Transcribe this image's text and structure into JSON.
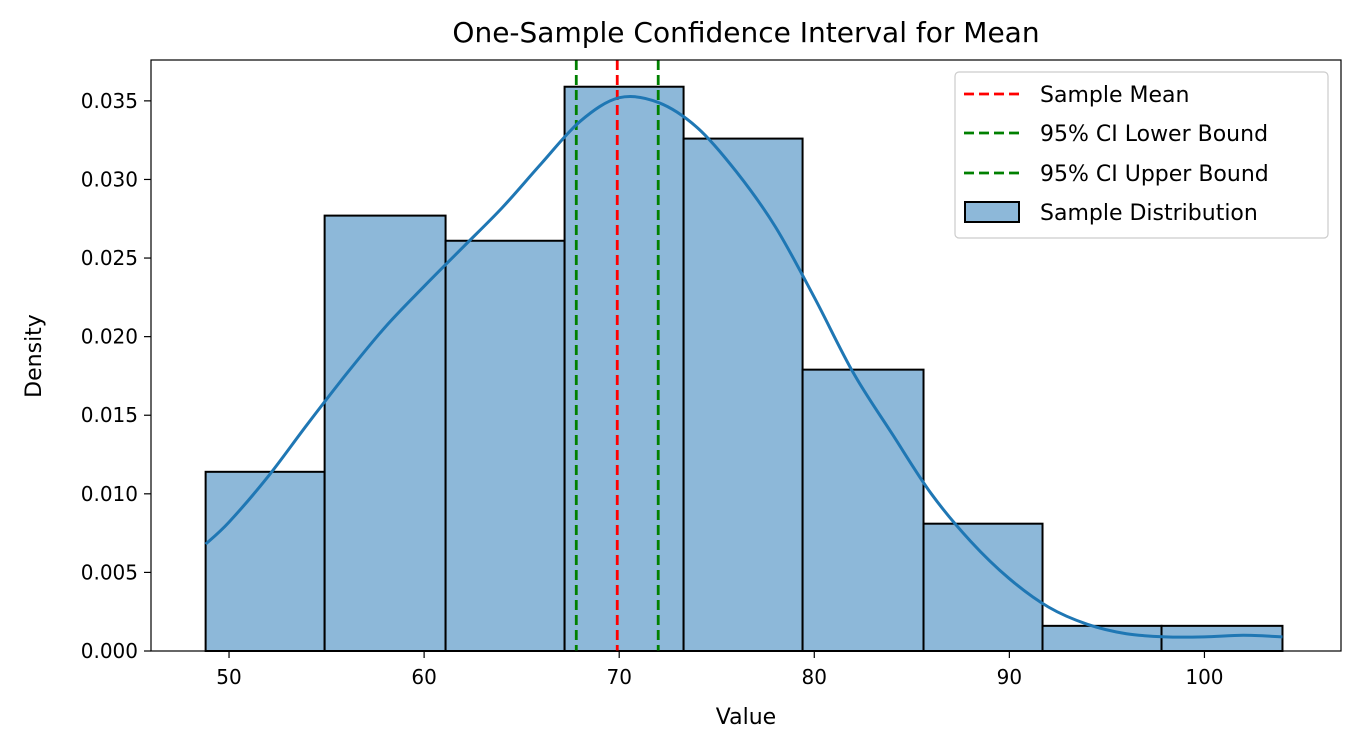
{
  "chart_data": {
    "type": "bar",
    "title": "One-Sample Confidence Interval for Mean",
    "xlabel": "Value",
    "ylabel": "Density",
    "xlim": [
      46,
      107
    ],
    "ylim": [
      0,
      0.0376
    ],
    "xticks": [
      50,
      60,
      70,
      80,
      90,
      100
    ],
    "yticks": [
      0.0,
      0.005,
      0.01,
      0.015,
      0.02,
      0.025,
      0.03,
      0.035
    ],
    "ytick_labels": [
      "0.000",
      "0.005",
      "0.010",
      "0.015",
      "0.020",
      "0.025",
      "0.030",
      "0.035"
    ],
    "histogram": {
      "name": "Sample Distribution",
      "color": "#8db8d9",
      "edge_color": "#000000",
      "bins": [
        {
          "x0": 48.8,
          "x1": 54.9,
          "density": 0.0114
        },
        {
          "x0": 54.9,
          "x1": 61.1,
          "density": 0.0277
        },
        {
          "x0": 61.1,
          "x1": 67.2,
          "density": 0.0261
        },
        {
          "x0": 67.2,
          "x1": 73.3,
          "density": 0.0359
        },
        {
          "x0": 73.3,
          "x1": 79.4,
          "density": 0.0326
        },
        {
          "x0": 79.4,
          "x1": 85.6,
          "density": 0.0179
        },
        {
          "x0": 85.6,
          "x1": 91.7,
          "density": 0.0081
        },
        {
          "x0": 91.7,
          "x1": 97.8,
          "density": 0.0016
        },
        {
          "x0": 97.8,
          "x1": 104.0,
          "density": 0.0016
        }
      ]
    },
    "kde": {
      "color": "#1f77b4",
      "x": [
        48.8,
        50,
        52,
        54,
        56,
        58,
        60,
        62,
        64,
        66,
        68,
        70,
        72,
        74,
        76,
        78,
        80,
        82,
        84,
        86,
        88,
        90,
        92,
        94,
        96,
        98,
        100,
        102,
        104
      ],
      "y": [
        0.0068,
        0.0082,
        0.0111,
        0.0144,
        0.0176,
        0.0206,
        0.0232,
        0.0257,
        0.0282,
        0.031,
        0.0337,
        0.0352,
        0.0349,
        0.0333,
        0.0305,
        0.027,
        0.0225,
        0.0177,
        0.0138,
        0.01,
        0.007,
        0.0046,
        0.0028,
        0.0017,
        0.0011,
        0.0009,
        0.0009,
        0.001,
        0.0009
      ]
    },
    "vlines": [
      {
        "name": "Sample Mean",
        "x": 69.9,
        "color": "#ff0000"
      },
      {
        "name": "95% CI Lower Bound",
        "x": 67.8,
        "color": "#008000"
      },
      {
        "name": "95% CI Upper Bound",
        "x": 72.0,
        "color": "#008000"
      }
    ],
    "legend": {
      "placement": "top-right",
      "entries": [
        "Sample Mean",
        "95% CI Lower Bound",
        "95% CI Upper Bound",
        "Sample Distribution"
      ]
    }
  }
}
